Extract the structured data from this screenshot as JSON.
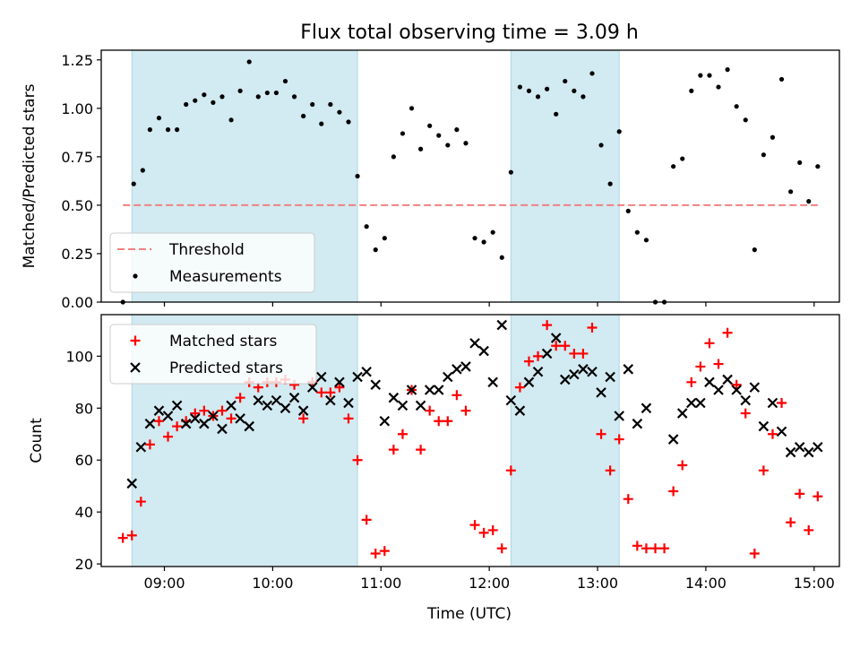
{
  "figure": {
    "title": "Flux total observing time = 3.09 h",
    "xlabel": "Time (UTC)"
  },
  "colors": {
    "band": "#add8e6",
    "threshold": "#f08080",
    "measurement": "#000000",
    "matched": "#ff0000",
    "predicted": "#000000"
  },
  "chart_data": [
    {
      "type": "scatter",
      "panel": "top",
      "ylabel": "Matched/Predicted stars",
      "ylim": [
        0,
        1.3
      ],
      "y_ticks": [
        "0.00",
        "0.25",
        "0.50",
        "0.75",
        "1.00",
        "1.25"
      ],
      "x_ticks": [
        "09:00",
        "10:00",
        "11:00",
        "12:00",
        "13:00",
        "14:00",
        "15:00"
      ],
      "xlim": [
        "08:25",
        "15:14"
      ],
      "shaded_intervals": [
        [
          "08:42",
          "10:47"
        ],
        [
          "12:12",
          "13:12"
        ]
      ],
      "legend": {
        "placement": "lower-left",
        "entries": [
          "Threshold",
          "Measurements"
        ]
      },
      "threshold": {
        "name": "Threshold",
        "value": 0.5,
        "x_range": [
          "08:37",
          "15:02"
        ]
      },
      "series": [
        {
          "name": "Measurements",
          "points": [
            [
              "08:37",
              0.0
            ],
            [
              "08:43",
              0.61
            ],
            [
              "08:48",
              0.68
            ],
            [
              "08:52",
              0.89
            ],
            [
              "08:57",
              0.95
            ],
            [
              "09:02",
              0.89
            ],
            [
              "09:07",
              0.89
            ],
            [
              "09:12",
              1.02
            ],
            [
              "09:17",
              1.04
            ],
            [
              "09:22",
              1.07
            ],
            [
              "09:27",
              1.03
            ],
            [
              "09:32",
              1.06
            ],
            [
              "09:37",
              0.94
            ],
            [
              "09:42",
              1.09
            ],
            [
              "09:47",
              1.24
            ],
            [
              "09:52",
              1.06
            ],
            [
              "09:57",
              1.08
            ],
            [
              "10:02",
              1.08
            ],
            [
              "10:07",
              1.14
            ],
            [
              "10:12",
              1.06
            ],
            [
              "10:17",
              0.96
            ],
            [
              "10:22",
              1.02
            ],
            [
              "10:27",
              0.92
            ],
            [
              "10:32",
              1.02
            ],
            [
              "10:37",
              0.98
            ],
            [
              "10:42",
              0.93
            ],
            [
              "10:47",
              0.65
            ],
            [
              "10:52",
              0.39
            ],
            [
              "10:57",
              0.27
            ],
            [
              "11:02",
              0.33
            ],
            [
              "11:07",
              0.75
            ],
            [
              "11:12",
              0.87
            ],
            [
              "11:17",
              1.0
            ],
            [
              "11:22",
              0.79
            ],
            [
              "11:27",
              0.91
            ],
            [
              "11:32",
              0.86
            ],
            [
              "11:37",
              0.81
            ],
            [
              "11:42",
              0.89
            ],
            [
              "11:47",
              0.82
            ],
            [
              "11:52",
              0.33
            ],
            [
              "11:57",
              0.31
            ],
            [
              "12:02",
              0.36
            ],
            [
              "12:07",
              0.23
            ],
            [
              "12:12",
              0.67
            ],
            [
              "12:17",
              1.11
            ],
            [
              "12:22",
              1.09
            ],
            [
              "12:27",
              1.06
            ],
            [
              "12:32",
              1.1
            ],
            [
              "12:37",
              0.97
            ],
            [
              "12:42",
              1.14
            ],
            [
              "12:47",
              1.09
            ],
            [
              "12:52",
              1.06
            ],
            [
              "12:57",
              1.18
            ],
            [
              "13:02",
              0.81
            ],
            [
              "13:07",
              0.61
            ],
            [
              "13:12",
              0.88
            ],
            [
              "13:17",
              0.47
            ],
            [
              "13:22",
              0.36
            ],
            [
              "13:27",
              0.32
            ],
            [
              "13:32",
              0.0
            ],
            [
              "13:37",
              0.0
            ],
            [
              "13:42",
              0.7
            ],
            [
              "13:47",
              0.74
            ],
            [
              "13:52",
              1.09
            ],
            [
              "13:57",
              1.17
            ],
            [
              "14:02",
              1.17
            ],
            [
              "14:07",
              1.11
            ],
            [
              "14:12",
              1.2
            ],
            [
              "14:17",
              1.01
            ],
            [
              "14:22",
              0.94
            ],
            [
              "14:27",
              0.27
            ],
            [
              "14:32",
              0.76
            ],
            [
              "14:37",
              0.85
            ],
            [
              "14:42",
              1.15
            ],
            [
              "14:47",
              0.57
            ],
            [
              "14:52",
              0.72
            ],
            [
              "14:57",
              0.52
            ],
            [
              "15:02",
              0.7
            ]
          ]
        }
      ]
    },
    {
      "type": "scatter",
      "panel": "bottom",
      "ylabel": "Count",
      "ylim": [
        19,
        116
      ],
      "y_ticks": [
        "20",
        "40",
        "60",
        "80",
        "100"
      ],
      "x_ticks": [
        "09:00",
        "10:00",
        "11:00",
        "12:00",
        "13:00",
        "14:00",
        "15:00"
      ],
      "xlim": [
        "08:25",
        "15:14"
      ],
      "shaded_intervals": [
        [
          "08:42",
          "10:47"
        ],
        [
          "12:12",
          "13:12"
        ]
      ],
      "legend": {
        "placement": "upper-left",
        "entries": [
          "Matched stars",
          "Predicted stars"
        ]
      },
      "series": [
        {
          "name": "Matched stars",
          "points": [
            [
              "08:37",
              30
            ],
            [
              "08:42",
              31
            ],
            [
              "08:47",
              44
            ],
            [
              "08:52",
              66
            ],
            [
              "08:57",
              75
            ],
            [
              "09:02",
              69
            ],
            [
              "09:07",
              73
            ],
            [
              "09:12",
              75
            ],
            [
              "09:17",
              78
            ],
            [
              "09:22",
              79
            ],
            [
              "09:27",
              77
            ],
            [
              "09:32",
              79
            ],
            [
              "09:37",
              76
            ],
            [
              "09:42",
              84
            ],
            [
              "09:47",
              90
            ],
            [
              "09:52",
              88
            ],
            [
              "09:57",
              90
            ],
            [
              "10:02",
              90
            ],
            [
              "10:07",
              91
            ],
            [
              "10:12",
              89
            ],
            [
              "10:17",
              76
            ],
            [
              "10:22",
              90
            ],
            [
              "10:27",
              86
            ],
            [
              "10:32",
              86
            ],
            [
              "10:37",
              88
            ],
            [
              "10:42",
              76
            ],
            [
              "10:47",
              60
            ],
            [
              "10:52",
              37
            ],
            [
              "10:57",
              24
            ],
            [
              "11:02",
              25
            ],
            [
              "11:07",
              64
            ],
            [
              "11:12",
              70
            ],
            [
              "11:17",
              87
            ],
            [
              "11:22",
              64
            ],
            [
              "11:27",
              79
            ],
            [
              "11:32",
              75
            ],
            [
              "11:37",
              75
            ],
            [
              "11:42",
              85
            ],
            [
              "11:47",
              79
            ],
            [
              "11:52",
              35
            ],
            [
              "11:57",
              32
            ],
            [
              "12:02",
              33
            ],
            [
              "12:07",
              26
            ],
            [
              "12:12",
              56
            ],
            [
              "12:17",
              88
            ],
            [
              "12:22",
              98
            ],
            [
              "12:27",
              100
            ],
            [
              "12:32",
              112
            ],
            [
              "12:37",
              104
            ],
            [
              "12:42",
              104
            ],
            [
              "12:47",
              101
            ],
            [
              "12:52",
              101
            ],
            [
              "12:57",
              111
            ],
            [
              "13:02",
              70
            ],
            [
              "13:07",
              56
            ],
            [
              "13:12",
              68
            ],
            [
              "13:17",
              45
            ],
            [
              "13:22",
              27
            ],
            [
              "13:27",
              26
            ],
            [
              "13:32",
              26
            ],
            [
              "13:37",
              26
            ],
            [
              "13:42",
              48
            ],
            [
              "13:47",
              58
            ],
            [
              "13:52",
              90
            ],
            [
              "13:57",
              96
            ],
            [
              "14:02",
              105
            ],
            [
              "14:07",
              97
            ],
            [
              "14:12",
              109
            ],
            [
              "14:17",
              89
            ],
            [
              "14:22",
              78
            ],
            [
              "14:27",
              24
            ],
            [
              "14:32",
              56
            ],
            [
              "14:37",
              70
            ],
            [
              "14:42",
              82
            ],
            [
              "14:47",
              36
            ],
            [
              "14:52",
              47
            ],
            [
              "14:57",
              33
            ],
            [
              "15:02",
              46
            ]
          ]
        },
        {
          "name": "Predicted stars",
          "points": [
            [
              "08:42",
              51
            ],
            [
              "08:47",
              65
            ],
            [
              "08:52",
              74
            ],
            [
              "08:57",
              79
            ],
            [
              "09:02",
              77
            ],
            [
              "09:07",
              81
            ],
            [
              "09:12",
              74
            ],
            [
              "09:17",
              76
            ],
            [
              "09:22",
              74
            ],
            [
              "09:27",
              77
            ],
            [
              "09:32",
              72
            ],
            [
              "09:37",
              81
            ],
            [
              "09:42",
              76
            ],
            [
              "09:47",
              73
            ],
            [
              "09:52",
              83
            ],
            [
              "09:57",
              81
            ],
            [
              "10:02",
              83
            ],
            [
              "10:07",
              80
            ],
            [
              "10:12",
              84
            ],
            [
              "10:17",
              79
            ],
            [
              "10:22",
              88
            ],
            [
              "10:27",
              92
            ],
            [
              "10:32",
              83
            ],
            [
              "10:37",
              90
            ],
            [
              "10:42",
              82
            ],
            [
              "10:47",
              92
            ],
            [
              "10:52",
              94
            ],
            [
              "10:57",
              89
            ],
            [
              "11:02",
              75
            ],
            [
              "11:07",
              84
            ],
            [
              "11:12",
              81
            ],
            [
              "11:17",
              87
            ],
            [
              "11:22",
              81
            ],
            [
              "11:27",
              87
            ],
            [
              "11:32",
              87
            ],
            [
              "11:37",
              92
            ],
            [
              "11:42",
              95
            ],
            [
              "11:47",
              96
            ],
            [
              "11:52",
              105
            ],
            [
              "11:57",
              102
            ],
            [
              "12:02",
              90
            ],
            [
              "12:07",
              112
            ],
            [
              "12:12",
              83
            ],
            [
              "12:17",
              79
            ],
            [
              "12:22",
              90
            ],
            [
              "12:27",
              94
            ],
            [
              "12:32",
              101
            ],
            [
              "12:37",
              107
            ],
            [
              "12:42",
              91
            ],
            [
              "12:47",
              93
            ],
            [
              "12:52",
              95
            ],
            [
              "12:57",
              94
            ],
            [
              "13:02",
              86
            ],
            [
              "13:07",
              92
            ],
            [
              "13:12",
              77
            ],
            [
              "13:17",
              95
            ],
            [
              "13:22",
              74
            ],
            [
              "13:27",
              80
            ],
            [
              "13:42",
              68
            ],
            [
              "13:47",
              78
            ],
            [
              "13:52",
              82
            ],
            [
              "13:57",
              82
            ],
            [
              "14:02",
              90
            ],
            [
              "14:07",
              87
            ],
            [
              "14:12",
              91
            ],
            [
              "14:17",
              87
            ],
            [
              "14:22",
              83
            ],
            [
              "14:27",
              88
            ],
            [
              "14:32",
              73
            ],
            [
              "14:37",
              82
            ],
            [
              "14:42",
              71
            ],
            [
              "14:47",
              63
            ],
            [
              "14:52",
              65
            ],
            [
              "14:57",
              63
            ],
            [
              "15:02",
              65
            ]
          ]
        }
      ]
    }
  ]
}
